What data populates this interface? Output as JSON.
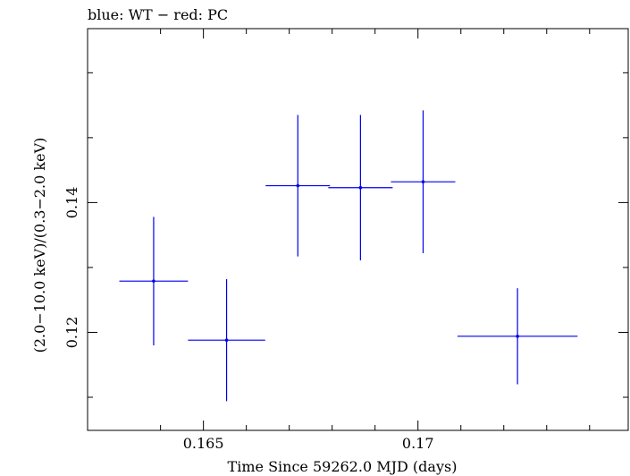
{
  "chart_data": {
    "type": "scatter",
    "title": "blue: WT − red: PC",
    "xlabel": "Time Since 59262.0 MJD (days)",
    "ylabel": "(2.0−10.0 keV)/(0.3−2.0 keV)",
    "xlim": [
      0.1623,
      0.1749
    ],
    "ylim": [
      0.1049,
      0.1668
    ],
    "x_major_ticks": [
      0.165,
      0.17
    ],
    "x_major_tick_labels": [
      "0.165",
      "0.17"
    ],
    "x_minor_ticks": [
      0.164,
      0.166,
      0.167,
      0.168,
      0.169,
      0.171,
      0.172,
      0.173,
      0.174
    ],
    "y_major_ticks": [
      0.12,
      0.14
    ],
    "y_major_tick_labels": [
      "0.12",
      "0.14"
    ],
    "y_minor_ticks": [
      0.11,
      0.13,
      0.15,
      0.16
    ],
    "grid": false,
    "colors": {
      "series": "#0000ee",
      "axes": "#000000"
    },
    "series": [
      {
        "points": [
          {
            "x": 0.16384,
            "xerr_low": 0.0008,
            "xerr_high": 0.0008,
            "y": 0.1279,
            "yerr_low": 0.0099,
            "yerr_high": 0.0099
          },
          {
            "x": 0.16554,
            "xerr_low": 0.0009,
            "xerr_high": 0.0009,
            "y": 0.1188,
            "yerr_low": 0.0094,
            "yerr_high": 0.0094
          },
          {
            "x": 0.1672,
            "xerr_low": 0.00075,
            "xerr_high": 0.00075,
            "y": 0.1426,
            "yerr_low": 0.0109,
            "yerr_high": 0.0109
          },
          {
            "x": 0.16866,
            "xerr_low": 0.00075,
            "xerr_high": 0.00075,
            "y": 0.1423,
            "yerr_low": 0.0112,
            "yerr_high": 0.0112
          },
          {
            "x": 0.17012,
            "xerr_low": 0.00075,
            "xerr_high": 0.00075,
            "y": 0.1432,
            "yerr_low": 0.011,
            "yerr_high": 0.011
          },
          {
            "x": 0.17232,
            "xerr_low": 0.0014,
            "xerr_high": 0.0014,
            "y": 0.1194,
            "yerr_low": 0.0074,
            "yerr_high": 0.0074
          }
        ]
      }
    ]
  }
}
